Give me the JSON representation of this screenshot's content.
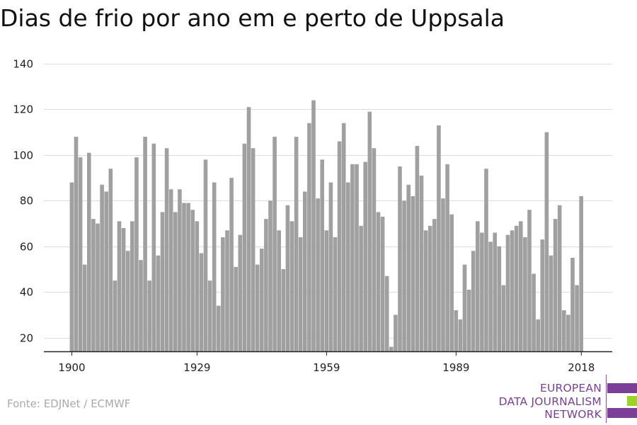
{
  "chart_data": {
    "type": "bar",
    "title": "Dias de frio por ano em e perto de Uppsala",
    "xlabel": "",
    "ylabel": "",
    "x": [
      1900,
      1901,
      1902,
      1903,
      1904,
      1905,
      1906,
      1907,
      1908,
      1909,
      1910,
      1911,
      1912,
      1913,
      1914,
      1915,
      1916,
      1917,
      1918,
      1919,
      1920,
      1921,
      1922,
      1923,
      1924,
      1925,
      1926,
      1927,
      1928,
      1929,
      1930,
      1931,
      1932,
      1933,
      1934,
      1935,
      1936,
      1937,
      1938,
      1939,
      1940,
      1941,
      1942,
      1943,
      1944,
      1945,
      1946,
      1947,
      1948,
      1949,
      1950,
      1951,
      1952,
      1953,
      1954,
      1955,
      1956,
      1957,
      1958,
      1959,
      1960,
      1961,
      1962,
      1963,
      1964,
      1965,
      1966,
      1967,
      1968,
      1969,
      1970,
      1971,
      1972,
      1973,
      1974,
      1975,
      1976,
      1977,
      1978,
      1979,
      1980,
      1981,
      1982,
      1983,
      1984,
      1985,
      1986,
      1987,
      1988,
      1989,
      1990,
      1991,
      1992,
      1993,
      1994,
      1995,
      1996,
      1997,
      1998,
      1999,
      2000,
      2001,
      2002,
      2003,
      2004,
      2005,
      2006,
      2007,
      2008,
      2009,
      2010,
      2011,
      2012,
      2013,
      2014,
      2015,
      2016,
      2017,
      2018
    ],
    "values": [
      88,
      108,
      99,
      52,
      101,
      72,
      70,
      87,
      84,
      94,
      45,
      71,
      68,
      58,
      71,
      99,
      54,
      108,
      45,
      105,
      56,
      75,
      103,
      85,
      75,
      85,
      79,
      79,
      76,
      71,
      57,
      98,
      45,
      88,
      34,
      64,
      67,
      90,
      51,
      65,
      105,
      121,
      103,
      52,
      59,
      72,
      80,
      108,
      67,
      50,
      78,
      71,
      108,
      64,
      84,
      114,
      124,
      81,
      98,
      67,
      88,
      64,
      106,
      114,
      88,
      96,
      96,
      69,
      97,
      119,
      103,
      75,
      73,
      47,
      16,
      30,
      95,
      80,
      87,
      82,
      104,
      91,
      67,
      69,
      72,
      113,
      81,
      96,
      74,
      32,
      28,
      52,
      41,
      58,
      71,
      66,
      94,
      62,
      66,
      60,
      43,
      65,
      67,
      69,
      71,
      64,
      76,
      48,
      28,
      63,
      110,
      56,
      72,
      78,
      32,
      30,
      55,
      43,
      82
    ],
    "ylim": [
      14,
      140
    ],
    "yticks": [
      20,
      40,
      60,
      80,
      100,
      120,
      140
    ],
    "xticks": [
      1900,
      1929,
      1959,
      1989,
      2018
    ],
    "grid": true,
    "colors": {
      "bar": "#a0a0a0",
      "grid": "#dddddd",
      "axis": "#222222"
    }
  },
  "source": "Fonte: EDJNet / ECMWF",
  "logo": {
    "lines": [
      "EUROPEAN",
      "DATA JOURNALISM",
      "NETWORK"
    ],
    "colors": [
      "#7b3f98",
      "#9bd424",
      "#7b3f98"
    ]
  }
}
